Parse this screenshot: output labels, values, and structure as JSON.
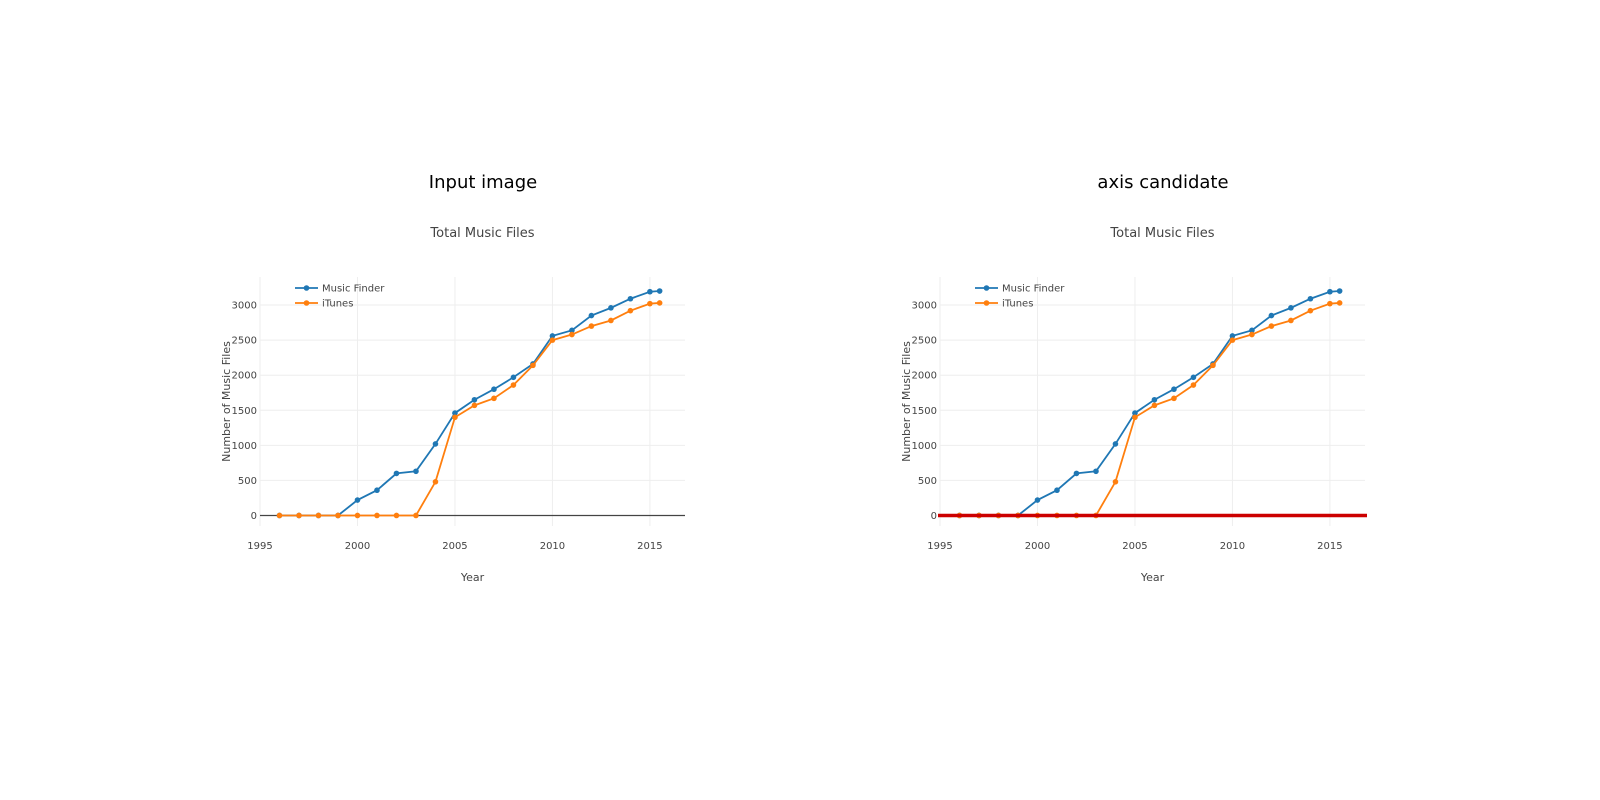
{
  "panels": [
    {
      "title": "Input image",
      "show_axis_candidate": false
    },
    {
      "title": "axis candidate",
      "show_axis_candidate": true
    }
  ],
  "colors": {
    "music_finder": "#1f77b4",
    "itunes": "#ff7f0e",
    "grid": "#eeeeee",
    "zero_line": "#444444",
    "axis_candidate": "#cc0000",
    "text": "#444444"
  },
  "chart_data": {
    "type": "line",
    "title": "Total Music Files",
    "xlabel": "Year",
    "ylabel": "Number of Music Files",
    "xlim": [
      1995,
      2016.8
    ],
    "ylim": [
      -150,
      3400
    ],
    "xticks": [
      1995,
      2000,
      2005,
      2010,
      2015
    ],
    "yticks": [
      0,
      500,
      1000,
      1500,
      2000,
      2500,
      3000
    ],
    "grid": true,
    "legend_position": "top-left",
    "series": [
      {
        "name": "Music Finder",
        "x": [
          1996,
          1997,
          1998,
          1999,
          2000,
          2001,
          2002,
          2003,
          2004,
          2005,
          2006,
          2007,
          2008,
          2009,
          2010,
          2011,
          2012,
          2013,
          2014,
          2015,
          2015.5
        ],
        "y": [
          0,
          0,
          0,
          0,
          220,
          360,
          600,
          630,
          1020,
          1460,
          1650,
          1800,
          1970,
          2160,
          2560,
          2640,
          2850,
          2960,
          3090,
          3190,
          3200
        ]
      },
      {
        "name": "iTunes",
        "x": [
          1996,
          1997,
          1998,
          1999,
          2000,
          2001,
          2002,
          2003,
          2004,
          2005,
          2006,
          2007,
          2008,
          2009,
          2010,
          2011,
          2012,
          2013,
          2014,
          2015,
          2015.5
        ],
        "y": [
          0,
          0,
          0,
          0,
          0,
          0,
          0,
          0,
          480,
          1400,
          1570,
          1670,
          1860,
          2140,
          2500,
          2580,
          2700,
          2780,
          2920,
          3020,
          3030
        ]
      }
    ]
  }
}
